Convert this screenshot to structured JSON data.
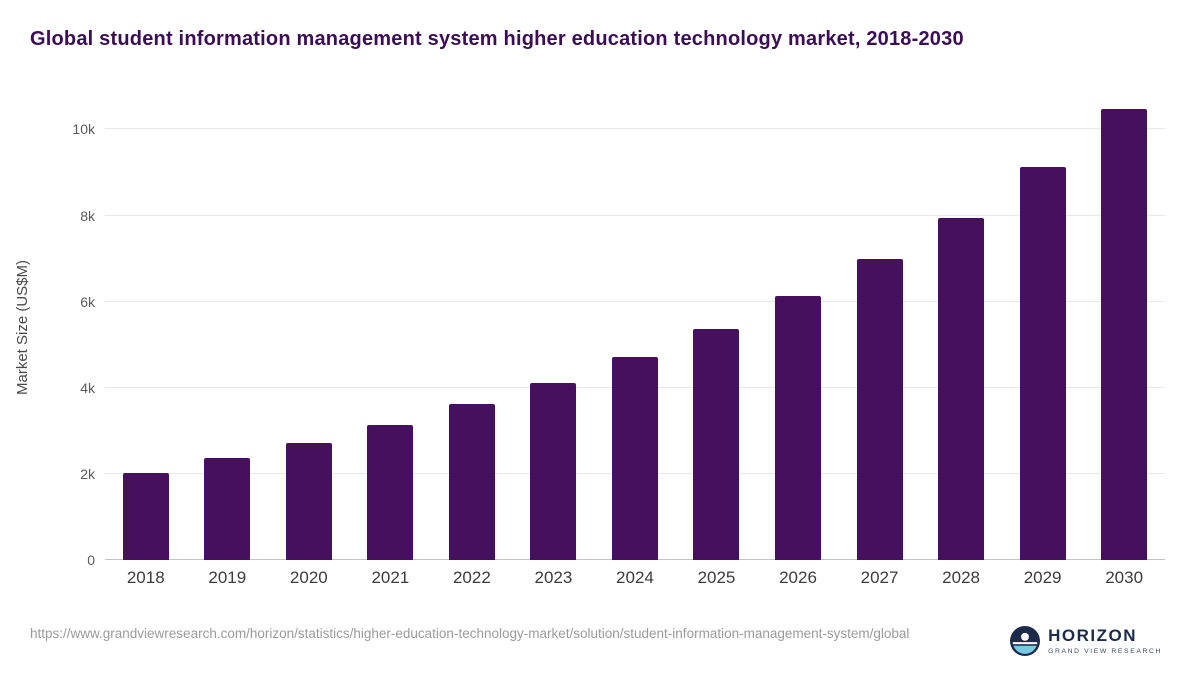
{
  "title": "Global student information management system higher education technology market, 2018-2030",
  "chart_data": {
    "type": "bar",
    "categories": [
      "2018",
      "2019",
      "2020",
      "2021",
      "2022",
      "2023",
      "2024",
      "2025",
      "2026",
      "2027",
      "2028",
      "2029",
      "2030"
    ],
    "values": [
      2030,
      2370,
      2720,
      3140,
      3630,
      4120,
      4720,
      5370,
      6140,
      7000,
      7950,
      9120,
      10470
    ],
    "title": "Global student information management system higher education technology market, 2018-2030",
    "xlabel": "",
    "ylabel": "Market Size (US$M)",
    "ylim": [
      0,
      10800
    ],
    "yticks": {
      "values": [
        0,
        2000,
        4000,
        6000,
        8000,
        10000
      ],
      "labels": [
        "0",
        "2k",
        "4k",
        "6k",
        "8k",
        "10k"
      ]
    },
    "grid": true,
    "legend": "none",
    "bar_color": "#45115f"
  },
  "footer": {
    "source_url": "https://www.grandviewresearch.com/horizon/statistics/higher-education-technology-market/solution/student-information-management-system/global"
  },
  "logo": {
    "name": "HORIZON",
    "subtitle": "GRAND VIEW RESEARCH",
    "navy": "#1c2b4a",
    "light_blue": "#79c9e2"
  },
  "colors": {
    "title": "#3b0d54",
    "bar": "#45115f",
    "gridline": "#e8e8e8",
    "axis_text": "#5a5a5a"
  }
}
